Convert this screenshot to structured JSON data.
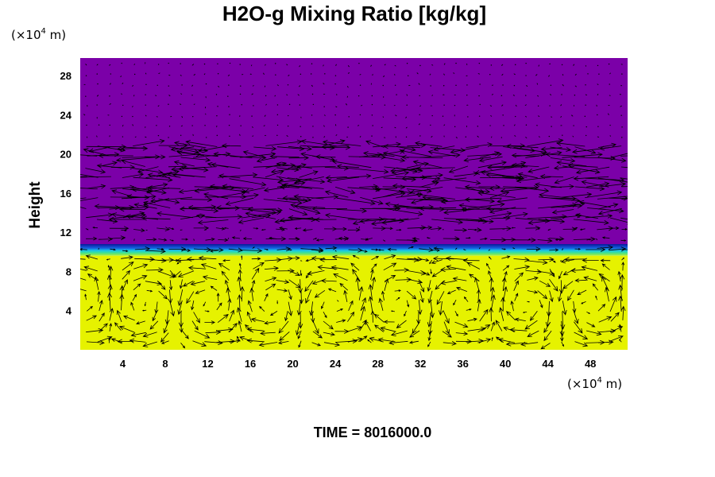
{
  "chart_data": {
    "type": "heatmap",
    "title": "H2O-g Mixing Ratio [kg/kg]",
    "ylabel": "Height",
    "xlabel": "",
    "x_unit": {
      "prefix": "(×10",
      "exp": "4",
      "suffix": " m)"
    },
    "y_unit": {
      "prefix": "(×10",
      "exp": "4",
      "suffix": " m)"
    },
    "xlim": [
      0,
      51.5
    ],
    "ylim": [
      0,
      29.8
    ],
    "x_ticks": [
      4,
      8,
      12,
      16,
      20,
      24,
      28,
      32,
      36,
      40,
      44,
      48
    ],
    "y_ticks": [
      4,
      8,
      12,
      16,
      20,
      24,
      28
    ],
    "footer": "TIME = 8016000.0",
    "colors": {
      "upper": "#7b00a8",
      "lower": "#e6f200",
      "transition": [
        "#0a1a9a",
        "#1560e0",
        "#18c8e8",
        "#40e090",
        "#b8f030"
      ],
      "vectors": "#000000"
    },
    "bands": [
      {
        "from": 0,
        "to": 9.6,
        "color": "lower"
      },
      {
        "from": 9.6,
        "to": 10.8,
        "color": "transition"
      },
      {
        "from": 10.8,
        "to": 29.8,
        "color": "upper"
      }
    ],
    "wind_vectors": "velocity arrow field overlaid on the mixing ratio"
  }
}
